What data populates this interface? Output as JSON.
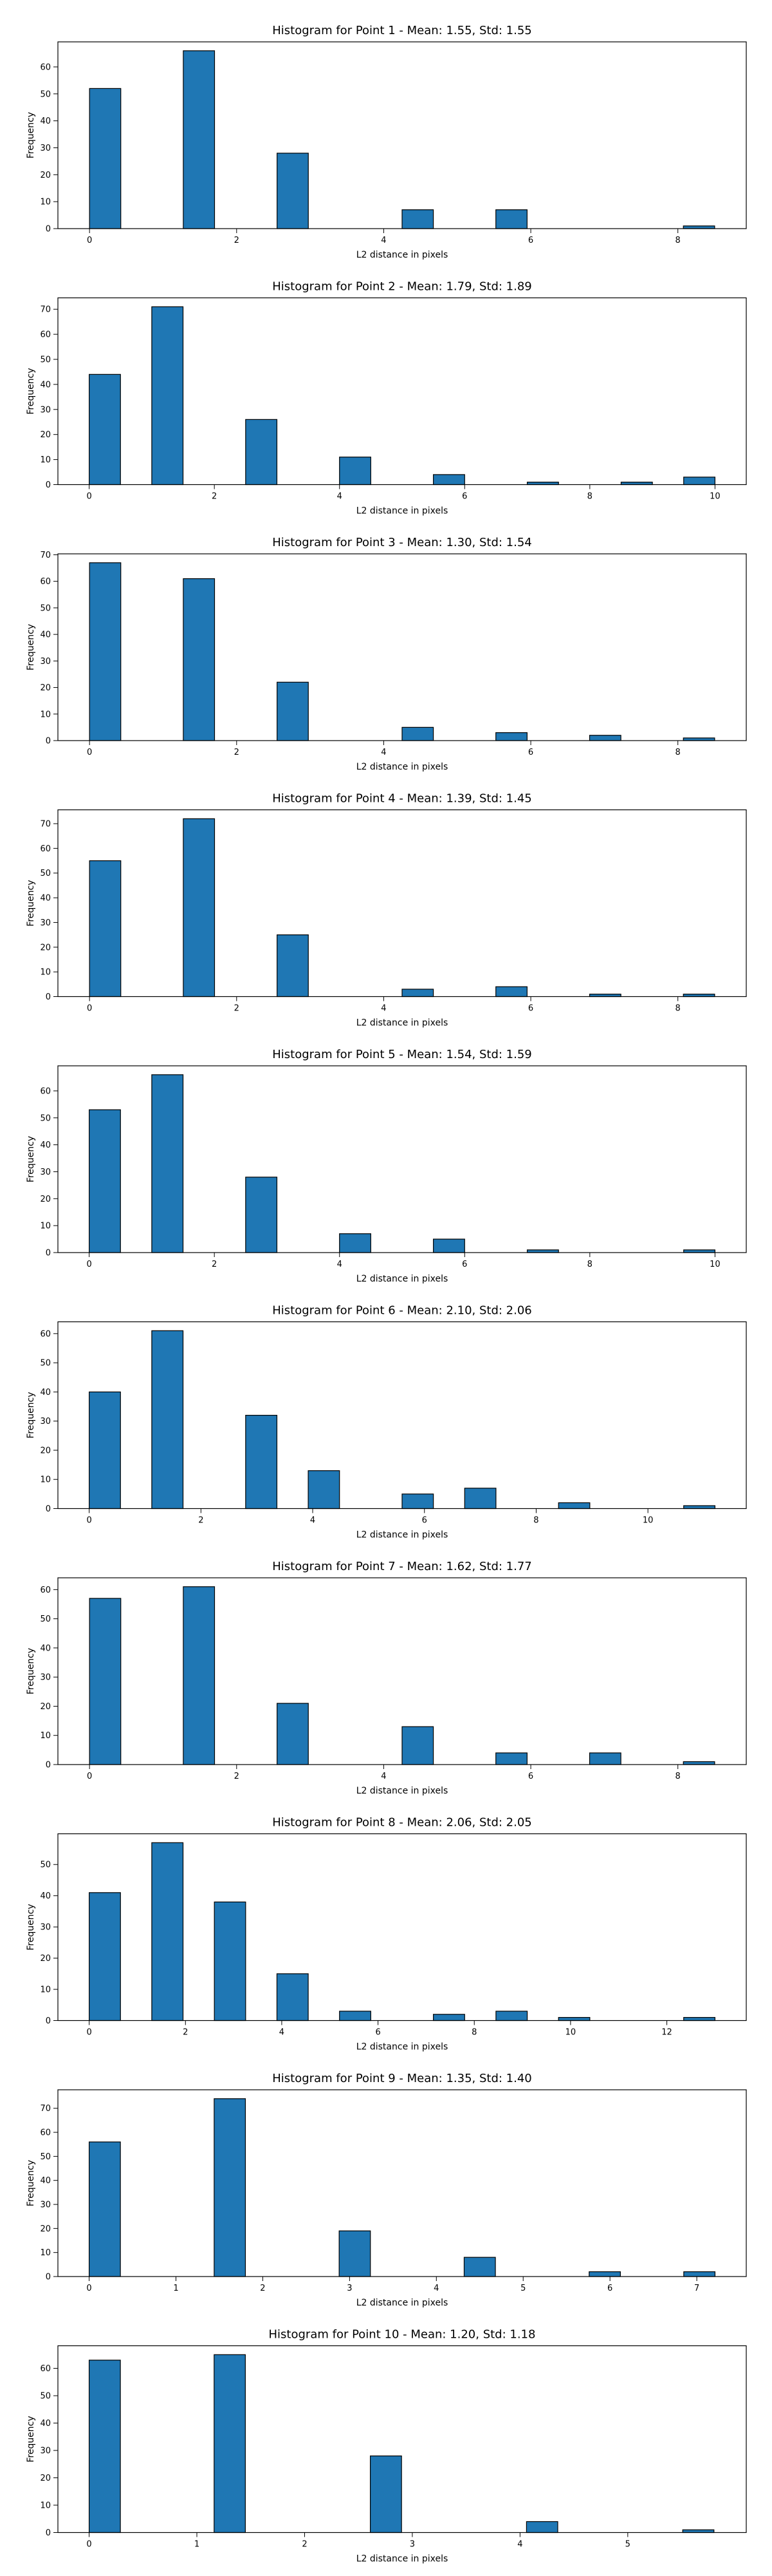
{
  "style": {
    "bar_fill": "#1f77b4",
    "bar_edge": "#000000",
    "axis_color": "#000000",
    "background": "#ffffff"
  },
  "chart_data": [
    {
      "type": "bar",
      "subtype": "histogram",
      "title": "Histogram for Point 1 - Mean: 1.55, Std: 1.55",
      "xlabel": "L2 distance in pixels",
      "ylabel": "Frequency",
      "xlim": [
        -0.43,
        8.93
      ],
      "ylim": [
        0,
        69.3
      ],
      "xticks": [
        0,
        2,
        4,
        6,
        8
      ],
      "yticks": [
        0,
        10,
        20,
        30,
        40,
        50,
        60
      ],
      "bins": [
        {
          "x0": 0.0,
          "x1": 0.425,
          "count": 52
        },
        {
          "x0": 1.275,
          "x1": 1.7,
          "count": 66
        },
        {
          "x0": 2.55,
          "x1": 2.975,
          "count": 28
        },
        {
          "x0": 4.25,
          "x1": 4.675,
          "count": 7
        },
        {
          "x0": 5.525,
          "x1": 5.95,
          "count": 7
        },
        {
          "x0": 8.075,
          "x1": 8.5,
          "count": 1
        }
      ],
      "grid": false,
      "legend": false
    },
    {
      "type": "bar",
      "subtype": "histogram",
      "title": "Histogram for Point 2 - Mean: 1.79, Std: 1.89",
      "xlabel": "L2 distance in pixels",
      "ylabel": "Frequency",
      "xlim": [
        -0.5,
        10.5
      ],
      "ylim": [
        0,
        74.55
      ],
      "xticks": [
        0,
        2,
        4,
        6,
        8,
        10
      ],
      "yticks": [
        0,
        10,
        20,
        30,
        40,
        50,
        60,
        70
      ],
      "bins": [
        {
          "x0": 0.0,
          "x1": 0.5,
          "count": 44
        },
        {
          "x0": 1.0,
          "x1": 1.5,
          "count": 71
        },
        {
          "x0": 2.5,
          "x1": 3.0,
          "count": 26
        },
        {
          "x0": 4.0,
          "x1": 4.5,
          "count": 11
        },
        {
          "x0": 5.5,
          "x1": 6.0,
          "count": 4
        },
        {
          "x0": 7.0,
          "x1": 7.5,
          "count": 1
        },
        {
          "x0": 8.5,
          "x1": 9.0,
          "count": 1
        },
        {
          "x0": 9.5,
          "x1": 10.0,
          "count": 3
        }
      ],
      "grid": false,
      "legend": false
    },
    {
      "type": "bar",
      "subtype": "histogram",
      "title": "Histogram for Point 3 - Mean: 1.30, Std: 1.54",
      "xlabel": "L2 distance in pixels",
      "ylabel": "Frequency",
      "xlim": [
        -0.43,
        8.93
      ],
      "ylim": [
        0,
        70.35
      ],
      "xticks": [
        0,
        2,
        4,
        6,
        8
      ],
      "yticks": [
        0,
        10,
        20,
        30,
        40,
        50,
        60,
        70
      ],
      "bins": [
        {
          "x0": 0.0,
          "x1": 0.425,
          "count": 67
        },
        {
          "x0": 1.275,
          "x1": 1.7,
          "count": 61
        },
        {
          "x0": 2.55,
          "x1": 2.975,
          "count": 22
        },
        {
          "x0": 4.25,
          "x1": 4.675,
          "count": 5
        },
        {
          "x0": 5.525,
          "x1": 5.95,
          "count": 3
        },
        {
          "x0": 6.8,
          "x1": 7.225,
          "count": 2
        },
        {
          "x0": 8.075,
          "x1": 8.5,
          "count": 1
        }
      ],
      "grid": false,
      "legend": false
    },
    {
      "type": "bar",
      "subtype": "histogram",
      "title": "Histogram for Point 4 - Mean: 1.39, Std: 1.45",
      "xlabel": "L2 distance in pixels",
      "ylabel": "Frequency",
      "xlim": [
        -0.43,
        8.93
      ],
      "ylim": [
        0,
        75.6
      ],
      "xticks": [
        0,
        2,
        4,
        6,
        8
      ],
      "yticks": [
        0,
        10,
        20,
        30,
        40,
        50,
        60,
        70
      ],
      "bins": [
        {
          "x0": 0.0,
          "x1": 0.425,
          "count": 55
        },
        {
          "x0": 1.275,
          "x1": 1.7,
          "count": 72
        },
        {
          "x0": 2.55,
          "x1": 2.975,
          "count": 25
        },
        {
          "x0": 4.25,
          "x1": 4.675,
          "count": 3
        },
        {
          "x0": 5.525,
          "x1": 5.95,
          "count": 4
        },
        {
          "x0": 6.8,
          "x1": 7.225,
          "count": 1
        },
        {
          "x0": 8.075,
          "x1": 8.5,
          "count": 1
        }
      ],
      "grid": false,
      "legend": false
    },
    {
      "type": "bar",
      "subtype": "histogram",
      "title": "Histogram for Point 5 - Mean: 1.54, Std: 1.59",
      "xlabel": "L2 distance in pixels",
      "ylabel": "Frequency",
      "xlim": [
        -0.5,
        10.5
      ],
      "ylim": [
        0,
        69.3
      ],
      "xticks": [
        0,
        2,
        4,
        6,
        8,
        10
      ],
      "yticks": [
        0,
        10,
        20,
        30,
        40,
        50,
        60
      ],
      "bins": [
        {
          "x0": 0.0,
          "x1": 0.5,
          "count": 53
        },
        {
          "x0": 1.0,
          "x1": 1.5,
          "count": 66
        },
        {
          "x0": 2.5,
          "x1": 3.0,
          "count": 28
        },
        {
          "x0": 4.0,
          "x1": 4.5,
          "count": 7
        },
        {
          "x0": 5.5,
          "x1": 6.0,
          "count": 5
        },
        {
          "x0": 7.0,
          "x1": 7.5,
          "count": 1
        },
        {
          "x0": 9.5,
          "x1": 10.0,
          "count": 1
        }
      ],
      "grid": false,
      "legend": false
    },
    {
      "type": "bar",
      "subtype": "histogram",
      "title": "Histogram for Point 6 - Mean: 2.10, Std: 2.06",
      "xlabel": "L2 distance in pixels",
      "ylabel": "Frequency",
      "xlim": [
        -0.56,
        11.76
      ],
      "ylim": [
        0,
        64.05
      ],
      "xticks": [
        0,
        2,
        4,
        6,
        8,
        10
      ],
      "yticks": [
        0,
        10,
        20,
        30,
        40,
        50,
        60
      ],
      "bins": [
        {
          "x0": 0.0,
          "x1": 0.56,
          "count": 40
        },
        {
          "x0": 1.12,
          "x1": 1.68,
          "count": 61
        },
        {
          "x0": 2.8,
          "x1": 3.36,
          "count": 32
        },
        {
          "x0": 3.92,
          "x1": 4.48,
          "count": 13
        },
        {
          "x0": 5.6,
          "x1": 6.16,
          "count": 5
        },
        {
          "x0": 6.72,
          "x1": 7.28,
          "count": 7
        },
        {
          "x0": 8.4,
          "x1": 8.96,
          "count": 2
        },
        {
          "x0": 10.64,
          "x1": 11.2,
          "count": 1
        }
      ],
      "grid": false,
      "legend": false
    },
    {
      "type": "bar",
      "subtype": "histogram",
      "title": "Histogram for Point 7 - Mean: 1.62, Std: 1.77",
      "xlabel": "L2 distance in pixels",
      "ylabel": "Frequency",
      "xlim": [
        -0.43,
        8.93
      ],
      "ylim": [
        0,
        64.05
      ],
      "xticks": [
        0,
        2,
        4,
        6,
        8
      ],
      "yticks": [
        0,
        10,
        20,
        30,
        40,
        50,
        60
      ],
      "bins": [
        {
          "x0": 0.0,
          "x1": 0.425,
          "count": 57
        },
        {
          "x0": 1.275,
          "x1": 1.7,
          "count": 61
        },
        {
          "x0": 2.55,
          "x1": 2.975,
          "count": 21
        },
        {
          "x0": 4.25,
          "x1": 4.675,
          "count": 13
        },
        {
          "x0": 5.525,
          "x1": 5.95,
          "count": 4
        },
        {
          "x0": 6.8,
          "x1": 7.225,
          "count": 4
        },
        {
          "x0": 8.075,
          "x1": 8.5,
          "count": 1
        }
      ],
      "grid": false,
      "legend": false
    },
    {
      "type": "bar",
      "subtype": "histogram",
      "title": "Histogram for Point 8 - Mean: 2.06, Std: 2.05",
      "xlabel": "L2 distance in pixels",
      "ylabel": "Frequency",
      "xlim": [
        -0.65,
        13.65
      ],
      "ylim": [
        0,
        59.85
      ],
      "xticks": [
        0,
        2,
        4,
        6,
        8,
        10,
        12
      ],
      "yticks": [
        0,
        10,
        20,
        30,
        40,
        50
      ],
      "bins": [
        {
          "x0": 0.0,
          "x1": 0.65,
          "count": 41
        },
        {
          "x0": 1.3,
          "x1": 1.95,
          "count": 57
        },
        {
          "x0": 2.6,
          "x1": 3.25,
          "count": 38
        },
        {
          "x0": 3.9,
          "x1": 4.55,
          "count": 15
        },
        {
          "x0": 5.2,
          "x1": 5.85,
          "count": 3
        },
        {
          "x0": 7.15,
          "x1": 7.8,
          "count": 2
        },
        {
          "x0": 8.45,
          "x1": 9.1,
          "count": 3
        },
        {
          "x0": 9.75,
          "x1": 10.4,
          "count": 1
        },
        {
          "x0": 12.35,
          "x1": 13.0,
          "count": 1
        }
      ],
      "grid": false,
      "legend": false
    },
    {
      "type": "bar",
      "subtype": "histogram",
      "title": "Histogram for Point 9 - Mean: 1.35, Std: 1.40",
      "xlabel": "L2 distance in pixels",
      "ylabel": "Frequency",
      "xlim": [
        -0.36,
        7.57
      ],
      "ylim": [
        0,
        77.7
      ],
      "xticks": [
        0,
        1,
        2,
        3,
        4,
        5,
        6,
        7
      ],
      "yticks": [
        0,
        10,
        20,
        30,
        40,
        50,
        60,
        70
      ],
      "bins": [
        {
          "x0": 0.0,
          "x1": 0.36,
          "count": 56
        },
        {
          "x0": 1.44,
          "x1": 1.8,
          "count": 74
        },
        {
          "x0": 2.88,
          "x1": 3.24,
          "count": 19
        },
        {
          "x0": 4.32,
          "x1": 4.68,
          "count": 8
        },
        {
          "x0": 5.76,
          "x1": 6.12,
          "count": 2
        },
        {
          "x0": 6.85,
          "x1": 7.21,
          "count": 2
        }
      ],
      "grid": false,
      "legend": false
    },
    {
      "type": "bar",
      "subtype": "histogram",
      "title": "Histogram for Point 10 - Mean: 1.20, Std: 1.18",
      "xlabel": "L2 distance in pixels",
      "ylabel": "Frequency",
      "xlim": [
        -0.29,
        6.1
      ],
      "ylim": [
        0,
        68.25
      ],
      "xticks": [
        0,
        1,
        2,
        3,
        4,
        5
      ],
      "yticks": [
        0,
        10,
        20,
        30,
        40,
        50,
        60
      ],
      "bins": [
        {
          "x0": 0.0,
          "x1": 0.29,
          "count": 63
        },
        {
          "x0": 1.16,
          "x1": 1.45,
          "count": 65
        },
        {
          "x0": 2.61,
          "x1": 2.9,
          "count": 28
        },
        {
          "x0": 4.06,
          "x1": 4.35,
          "count": 4
        },
        {
          "x0": 5.51,
          "x1": 5.8,
          "count": 1
        }
      ],
      "grid": false,
      "legend": false
    }
  ]
}
